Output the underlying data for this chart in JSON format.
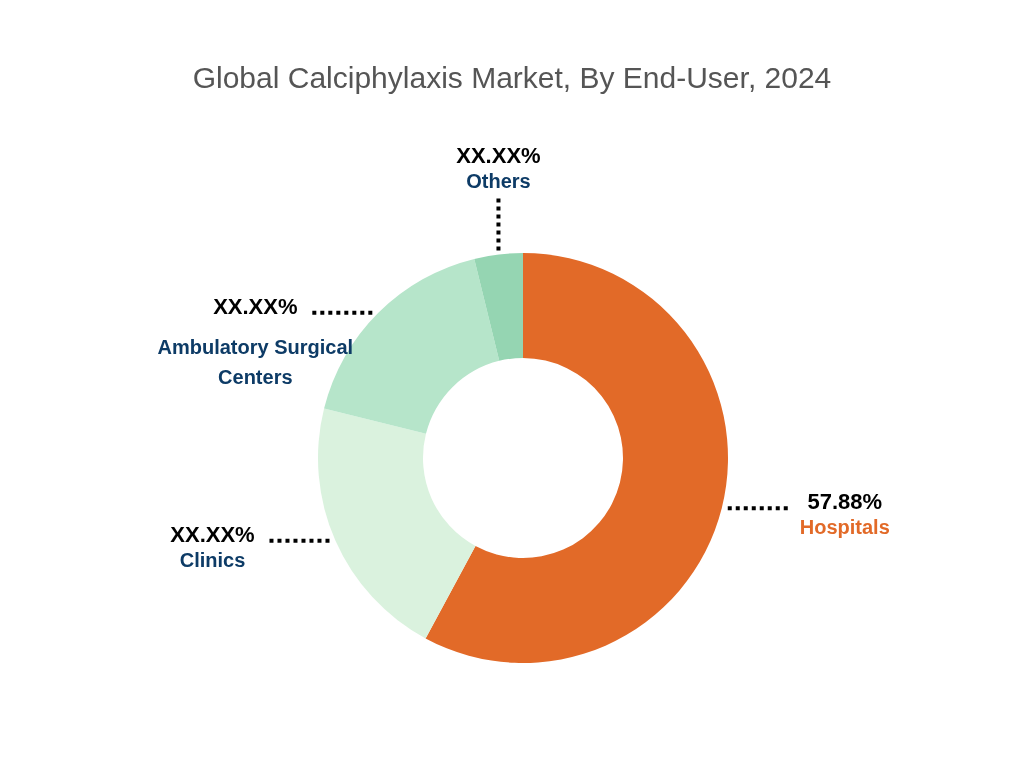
{
  "chart_data": {
    "type": "donut",
    "title": "Global Calciphylaxis Market, By End-User, 2024",
    "categories": [
      "Hospitals",
      "Clinics",
      "Ambulatory Surgical Centers",
      "Others"
    ],
    "values": [
      57.88,
      21.0,
      17.3,
      3.82
    ],
    "colors": [
      "#e26a28",
      "#daf2de",
      "#b6e5ca",
      "#95d5b2"
    ],
    "value_labels": [
      "57.88%",
      "XX.XX%",
      "XX.XX%",
      "XX.XX%"
    ]
  }
}
